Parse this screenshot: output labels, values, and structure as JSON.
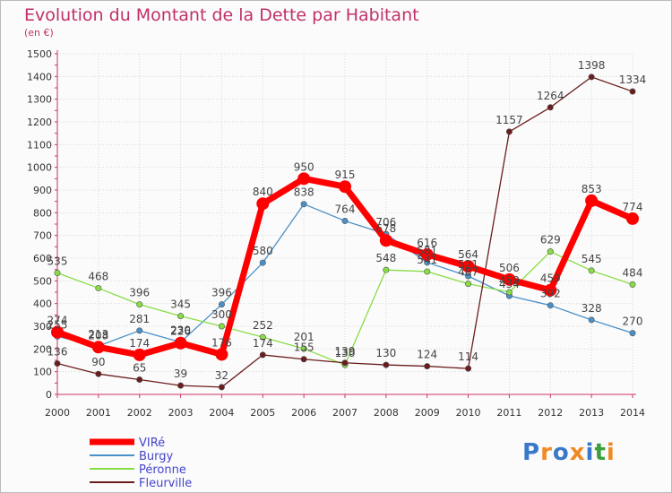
{
  "chart_data": {
    "type": "line",
    "title": "Evolution du Montant de la Dette par Habitant",
    "subtitle": "(en €)",
    "x": [
      "2000",
      "2001",
      "2002",
      "2003",
      "2004",
      "2005",
      "2006",
      "2007",
      "2008",
      "2009",
      "2010",
      "2011",
      "2012",
      "2013",
      "2014"
    ],
    "ylim": [
      0,
      1500
    ],
    "yticks": [
      0,
      100,
      200,
      300,
      400,
      500,
      600,
      700,
      800,
      900,
      1000,
      1100,
      1200,
      1300,
      1400,
      1500
    ],
    "grid": true,
    "legend_position": "bottom-left",
    "series": [
      {
        "name": "VIRé",
        "color": "#ff0000",
        "values": [
          274,
          208,
          174,
          226,
          176,
          840,
          950,
          915,
          678,
          616,
          564,
          506,
          459,
          853,
          774
        ]
      },
      {
        "name": "Burgy",
        "color": "#4a90c8",
        "values": [
          255,
          213,
          281,
          230,
          396,
          580,
          838,
          764,
          706,
          581,
          521,
          434,
          392,
          328,
          270
        ]
      },
      {
        "name": "Péronne",
        "color": "#88dd44",
        "values": [
          535,
          468,
          396,
          345,
          300,
          252,
          201,
          130,
          548,
          541,
          487,
          450,
          629,
          545,
          484
        ]
      },
      {
        "name": "Fleurville",
        "color": "#6b1d1d",
        "values": [
          136,
          90,
          65,
          39,
          32,
          174,
          155,
          139,
          130,
          124,
          114,
          1157,
          1264,
          1398,
          1334
        ]
      }
    ]
  },
  "logo": {
    "text": "Proxiti"
  }
}
